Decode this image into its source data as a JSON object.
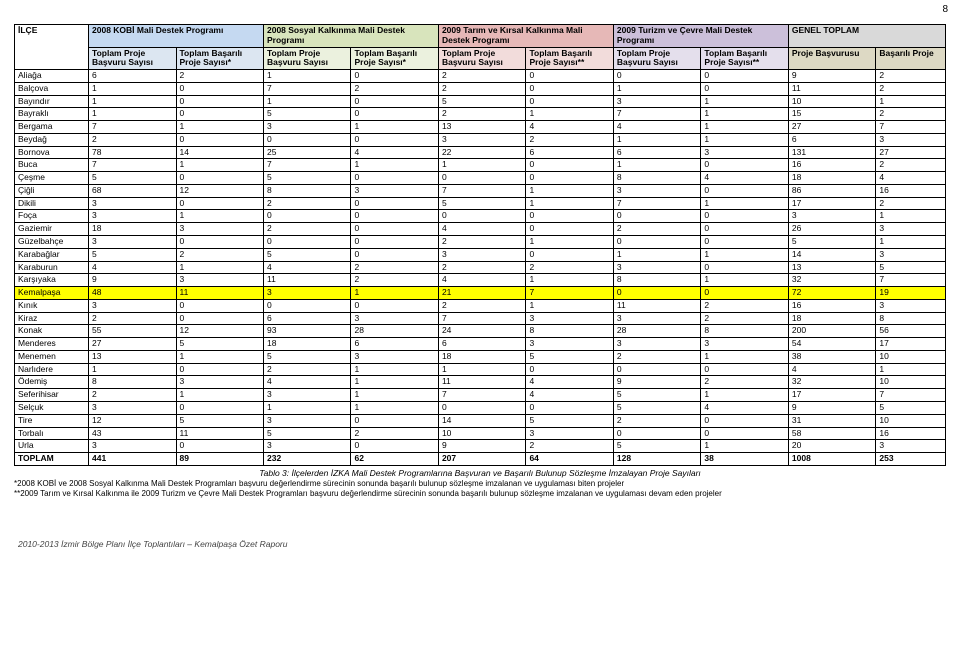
{
  "page_number": "8",
  "groups": [
    {
      "label": "2008 KOBİ Mali Destek Programı",
      "cls": "grp1"
    },
    {
      "label": "2008 Sosyal Kalkınma Mali Destek Programı",
      "cls": "grp2"
    },
    {
      "label": "2009 Tarım ve Kırsal Kalkınma Mali Destek Programı",
      "cls": "grp3"
    },
    {
      "label": "2009 Turizm ve Çevre Mali Destek Programı",
      "cls": "grp4"
    },
    {
      "label": "GENEL TOPLAM",
      "cls": "grp5"
    }
  ],
  "corner": "İLÇE",
  "sub": [
    {
      "label": "Toplam Proje Başvuru Sayısı",
      "cls": "sub1"
    },
    {
      "label": "Toplam Başarılı Proje Sayısı*",
      "cls": "sub1"
    },
    {
      "label": "Toplam Proje Başvuru Sayısı",
      "cls": "sub2"
    },
    {
      "label": "Toplam Başarılı Proje Sayısı*",
      "cls": "sub2"
    },
    {
      "label": "Toplam Proje Başvuru Sayısı",
      "cls": "sub3"
    },
    {
      "label": "Toplam Başarılı Proje Sayısı**",
      "cls": "sub3"
    },
    {
      "label": "Toplam Proje Başvuru Sayısı",
      "cls": "sub4"
    },
    {
      "label": "Toplam Başarılı Proje Sayısı**",
      "cls": "sub4"
    },
    {
      "label": "Proje Başvurusu",
      "cls": "sub5"
    },
    {
      "label": "Başarılı Proje",
      "cls": "sub5"
    }
  ],
  "rows": [
    {
      "label": "Aliağa",
      "v": [
        "6",
        "2",
        "1",
        "0",
        "2",
        "0",
        "0",
        "0",
        "9",
        "2"
      ]
    },
    {
      "label": "Balçova",
      "v": [
        "1",
        "0",
        "7",
        "2",
        "2",
        "0",
        "1",
        "0",
        "11",
        "2"
      ]
    },
    {
      "label": "Bayındır",
      "v": [
        "1",
        "0",
        "1",
        "0",
        "5",
        "0",
        "3",
        "1",
        "10",
        "1"
      ]
    },
    {
      "label": "Bayraklı",
      "v": [
        "1",
        "0",
        "5",
        "0",
        "2",
        "1",
        "7",
        "1",
        "15",
        "2"
      ]
    },
    {
      "label": "Bergama",
      "v": [
        "7",
        "1",
        "3",
        "1",
        "13",
        "4",
        "4",
        "1",
        "27",
        "7"
      ]
    },
    {
      "label": "Beydağ",
      "v": [
        "2",
        "0",
        "0",
        "0",
        "3",
        "2",
        "1",
        "1",
        "6",
        "3"
      ]
    },
    {
      "label": "Bornova",
      "v": [
        "78",
        "14",
        "25",
        "4",
        "22",
        "6",
        "6",
        "3",
        "131",
        "27"
      ]
    },
    {
      "label": "Buca",
      "v": [
        "7",
        "1",
        "7",
        "1",
        "1",
        "0",
        "1",
        "0",
        "16",
        "2"
      ]
    },
    {
      "label": "Çeşme",
      "v": [
        "5",
        "0",
        "5",
        "0",
        "0",
        "0",
        "8",
        "4",
        "18",
        "4"
      ]
    },
    {
      "label": "Çiğli",
      "v": [
        "68",
        "12",
        "8",
        "3",
        "7",
        "1",
        "3",
        "0",
        "86",
        "16"
      ]
    },
    {
      "label": "Dikili",
      "v": [
        "3",
        "0",
        "2",
        "0",
        "5",
        "1",
        "7",
        "1",
        "17",
        "2"
      ]
    },
    {
      "label": "Foça",
      "v": [
        "3",
        "1",
        "0",
        "0",
        "0",
        "0",
        "0",
        "0",
        "3",
        "1"
      ]
    },
    {
      "label": "Gaziemir",
      "v": [
        "18",
        "3",
        "2",
        "0",
        "4",
        "0",
        "2",
        "0",
        "26",
        "3"
      ]
    },
    {
      "label": "Güzelbahçe",
      "v": [
        "3",
        "0",
        "0",
        "0",
        "2",
        "1",
        "0",
        "0",
        "5",
        "1"
      ]
    },
    {
      "label": "Karabağlar",
      "v": [
        "5",
        "2",
        "5",
        "0",
        "3",
        "0",
        "1",
        "1",
        "14",
        "3"
      ]
    },
    {
      "label": "Karaburun",
      "v": [
        "4",
        "1",
        "4",
        "2",
        "2",
        "2",
        "3",
        "0",
        "13",
        "5"
      ]
    },
    {
      "label": "Karşıyaka",
      "v": [
        "9",
        "3",
        "11",
        "2",
        "4",
        "1",
        "8",
        "1",
        "32",
        "7"
      ]
    },
    {
      "label": "Kemalpaşa",
      "v": [
        "48",
        "11",
        "3",
        "1",
        "21",
        "7",
        "0",
        "0",
        "72",
        "19"
      ],
      "hl": true
    },
    {
      "label": "Kınık",
      "v": [
        "3",
        "0",
        "0",
        "0",
        "2",
        "1",
        "11",
        "2",
        "16",
        "3"
      ]
    },
    {
      "label": "Kiraz",
      "v": [
        "2",
        "0",
        "6",
        "3",
        "7",
        "3",
        "3",
        "2",
        "18",
        "8"
      ]
    },
    {
      "label": "Konak",
      "v": [
        "55",
        "12",
        "93",
        "28",
        "24",
        "8",
        "28",
        "8",
        "200",
        "56"
      ]
    },
    {
      "label": "Menderes",
      "v": [
        "27",
        "5",
        "18",
        "6",
        "6",
        "3",
        "3",
        "3",
        "54",
        "17"
      ]
    },
    {
      "label": "Menemen",
      "v": [
        "13",
        "1",
        "5",
        "3",
        "18",
        "5",
        "2",
        "1",
        "38",
        "10"
      ]
    },
    {
      "label": "Narlıdere",
      "v": [
        "1",
        "0",
        "2",
        "1",
        "1",
        "0",
        "0",
        "0",
        "4",
        "1"
      ]
    },
    {
      "label": "Ödemiş",
      "v": [
        "8",
        "3",
        "4",
        "1",
        "11",
        "4",
        "9",
        "2",
        "32",
        "10"
      ]
    },
    {
      "label": "Seferihisar",
      "v": [
        "2",
        "1",
        "3",
        "1",
        "7",
        "4",
        "5",
        "1",
        "17",
        "7"
      ]
    },
    {
      "label": "Selçuk",
      "v": [
        "3",
        "0",
        "1",
        "1",
        "0",
        "0",
        "5",
        "4",
        "9",
        "5"
      ]
    },
    {
      "label": "Tire",
      "v": [
        "12",
        "5",
        "3",
        "0",
        "14",
        "5",
        "2",
        "0",
        "31",
        "10"
      ]
    },
    {
      "label": "Torbalı",
      "v": [
        "43",
        "11",
        "5",
        "2",
        "10",
        "3",
        "0",
        "0",
        "58",
        "16"
      ]
    },
    {
      "label": "Urla",
      "v": [
        "3",
        "0",
        "3",
        "0",
        "9",
        "2",
        "5",
        "1",
        "20",
        "3"
      ]
    },
    {
      "label": "TOPLAM",
      "v": [
        "441",
        "89",
        "232",
        "62",
        "207",
        "64",
        "128",
        "38",
        "1008",
        "253"
      ],
      "total": true
    }
  ],
  "caption": "Tablo 3: İlçelerden İZKA Mali Destek Programlarına Başvuran ve Başarılı Bulunup Sözleşme İmzalayan Proje Sayıları",
  "footnote1": "*2008 KOBİ ve 2008 Sosyal Kalkınma Mali Destek Programları başvuru değerlendirme sürecinin sonunda başarılı bulunup sözleşme imzalanan ve uygulaması biten projeler",
  "footnote2": "**2009 Tarım ve Kırsal Kalkınma ile 2009 Turizm ve Çevre Mali Destek Programları başvuru değerlendirme sürecinin sonunda başarılı bulunup sözleşme imzalanan ve uygulaması devam eden projeler",
  "footer": "2010-2013 İzmir Bölge Planı İlçe Toplantıları – Kemalpaşa Özet Raporu"
}
